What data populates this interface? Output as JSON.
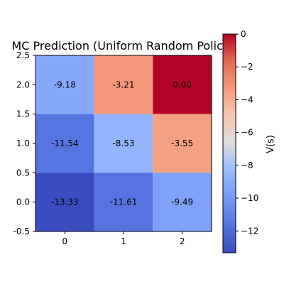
{
  "chart_data": {
    "type": "heatmap",
    "title": "MC Prediction (Uniform Random Policy)",
    "xlabel": "",
    "ylabel": "",
    "x_ticks": [
      "0",
      "1",
      "2"
    ],
    "y_ticks": [
      "-0.5",
      "0.0",
      "0.5",
      "1.0",
      "1.5",
      "2.0",
      "2.5"
    ],
    "xlim": [
      -0.5,
      2.5
    ],
    "ylim": [
      -0.5,
      2.5
    ],
    "rows": [
      {
        "y": 2,
        "values": [
          -9.18,
          -3.21,
          0.0
        ],
        "labels": [
          "-9.18",
          "-3.21",
          "0.00"
        ]
      },
      {
        "y": 1,
        "values": [
          -11.54,
          -8.53,
          -3.55
        ],
        "labels": [
          "-11.54",
          "-8.53",
          "-3.55"
        ]
      },
      {
        "y": 0,
        "values": [
          -13.33,
          -11.61,
          -9.49
        ],
        "labels": [
          "-13.33",
          "-11.61",
          "-9.49"
        ]
      }
    ],
    "colormap": "coolwarm",
    "colorbar": {
      "label": "V(s)",
      "vmin": -13.33,
      "vmax": 0,
      "ticks": [
        "0",
        "−2",
        "−4",
        "−6",
        "−8",
        "−10",
        "−12"
      ],
      "tick_values": [
        0,
        -2,
        -4,
        -6,
        -8,
        -10,
        -12
      ]
    },
    "grid": false
  }
}
